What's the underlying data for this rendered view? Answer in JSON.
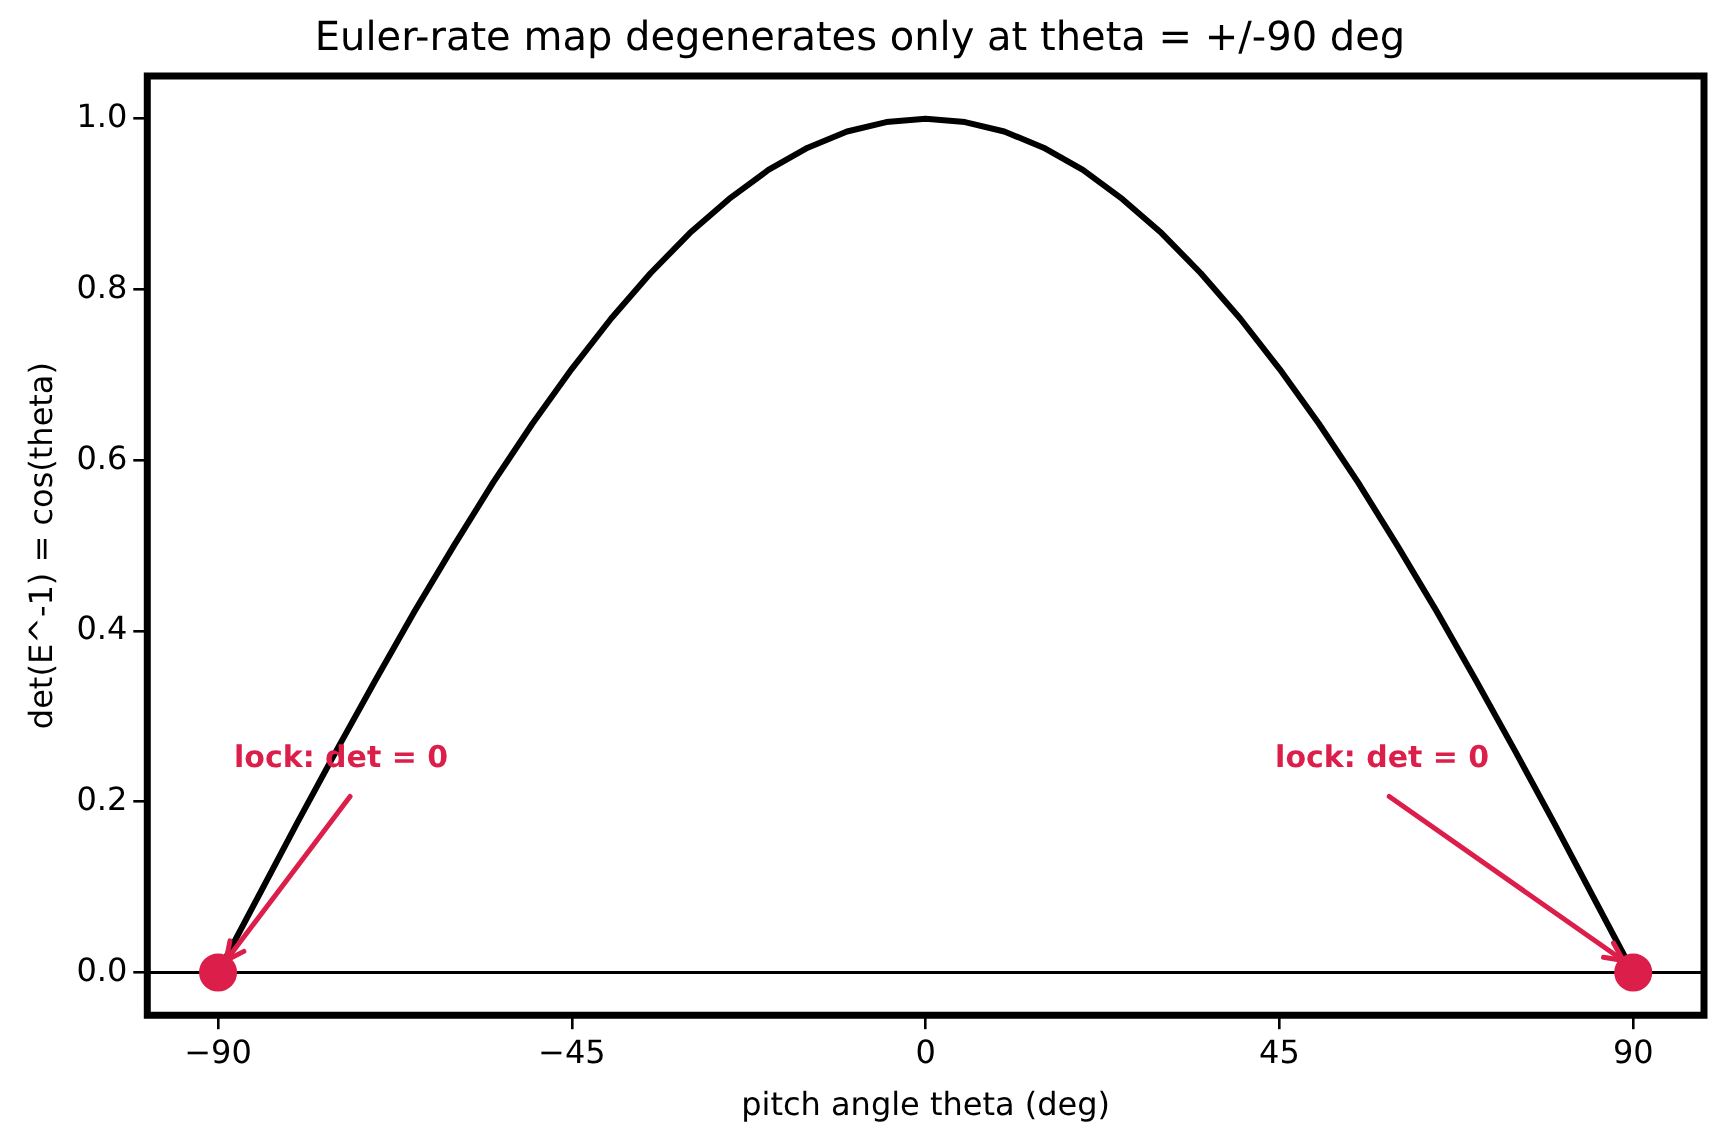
{
  "chart_data": {
    "type": "line",
    "title": "Euler-rate map degenerates only at theta = +/-90 deg",
    "xlabel": "pitch angle theta (deg)",
    "ylabel": "det(E^-1) = cos(theta)",
    "xlim": [
      -99,
      99
    ],
    "ylim": [
      -0.05,
      1.05
    ],
    "xticks": [
      {
        "value": -90,
        "label": "−90"
      },
      {
        "value": -45,
        "label": "−45"
      },
      0,
      45,
      90
    ],
    "yticks": [
      {
        "value": 0,
        "label": "0.0"
      },
      {
        "value": 0.2,
        "label": "0.2"
      },
      {
        "value": 0.4,
        "label": "0.4"
      },
      {
        "value": 0.6,
        "label": "0.6"
      },
      {
        "value": 0.8,
        "label": "0.8"
      },
      {
        "value": 1,
        "label": "1.0"
      }
    ],
    "grid": false,
    "legend": false,
    "series": [
      {
        "color": "#000000",
        "marker": "none",
        "x": [
          -90,
          -85,
          -80,
          -75,
          -70,
          -65,
          -60,
          -55,
          -50,
          -45,
          -40,
          -35,
          -30,
          -25,
          -20,
          -15,
          -10,
          -5,
          0,
          5,
          10,
          15,
          20,
          25,
          30,
          35,
          40,
          45,
          50,
          55,
          60,
          65,
          70,
          75,
          80,
          85,
          90
        ],
        "values": [
          0,
          0.087,
          0.174,
          0.259,
          0.342,
          0.423,
          0.5,
          0.574,
          0.643,
          0.707,
          0.766,
          0.819,
          0.866,
          0.906,
          0.94,
          0.966,
          0.985,
          0.996,
          1,
          0.996,
          0.985,
          0.966,
          0.94,
          0.906,
          0.866,
          0.819,
          0.766,
          0.707,
          0.643,
          0.574,
          0.5,
          0.423,
          0.342,
          0.259,
          0.174,
          0.087,
          0
        ]
      },
      {
        "type": "scatter",
        "color": "#dc1e4a",
        "marker": "circle",
        "x": [
          -90,
          90
        ],
        "values": [
          0,
          0
        ]
      }
    ],
    "ref_lines": [
      {
        "axis": "y",
        "value": 0,
        "color": "#000000"
      }
    ],
    "annotations": [
      {
        "text": "lock: det = 0",
        "x": -90,
        "y": 0
      },
      {
        "text": "lock: det = 0",
        "x": 90,
        "y": 0
      }
    ]
  }
}
